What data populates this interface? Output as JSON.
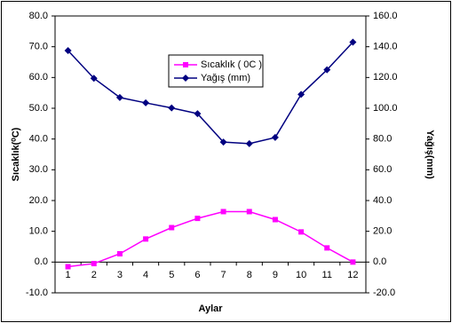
{
  "chart_data": {
    "type": "line",
    "x_label": "Aylar",
    "y_label": "Sıcaklık(⁰C)",
    "y2_label": "Yağış(mm)",
    "categories": [
      "1",
      "2",
      "3",
      "4",
      "5",
      "6",
      "7",
      "8",
      "9",
      "10",
      "11",
      "12"
    ],
    "series": [
      {
        "name": "Sıcaklık ( 0C )",
        "color": "#ff00ff",
        "marker": "square",
        "values": [
          -1.5,
          -0.5,
          2.7,
          7.5,
          11.2,
          14.2,
          16.4,
          16.4,
          13.8,
          9.8,
          4.6,
          0
        ]
      },
      {
        "name": "Yağış (mm)",
        "color": "#000080",
        "marker": "diamond",
        "axis": "y2",
        "values": [
          137.5,
          119.5,
          107,
          103.5,
          100.2,
          96.5,
          78,
          77,
          81,
          109,
          125,
          143
        ]
      }
    ],
    "ylim": [
      -10,
      80
    ],
    "yticks": [
      {
        "value": -10,
        "label": "-10.0"
      },
      {
        "value": 0,
        "label": "0.0"
      },
      {
        "value": 10,
        "label": "10.0"
      },
      {
        "value": 20,
        "label": "20.0"
      },
      {
        "value": 30,
        "label": "30.0"
      },
      {
        "value": 40,
        "label": "40.0"
      },
      {
        "value": 50,
        "label": "50.0"
      },
      {
        "value": 60,
        "label": "60.0"
      },
      {
        "value": 70,
        "label": "70.0"
      },
      {
        "value": 80,
        "label": "80.0"
      }
    ],
    "y2lim": [
      -20,
      160
    ],
    "y2ticks": [
      {
        "value": -20,
        "label": "-20.0"
      },
      {
        "value": 0,
        "label": "0.0"
      },
      {
        "value": 20,
        "label": "20.0"
      },
      {
        "value": 40,
        "label": "40.0"
      },
      {
        "value": 60,
        "label": "60.0"
      },
      {
        "value": 80,
        "label": "80.0"
      },
      {
        "value": 100,
        "label": "100.0"
      },
      {
        "value": 120,
        "label": "120.0"
      },
      {
        "value": 140,
        "label": "140.0"
      },
      {
        "value": 160,
        "label": "160.0"
      }
    ]
  }
}
